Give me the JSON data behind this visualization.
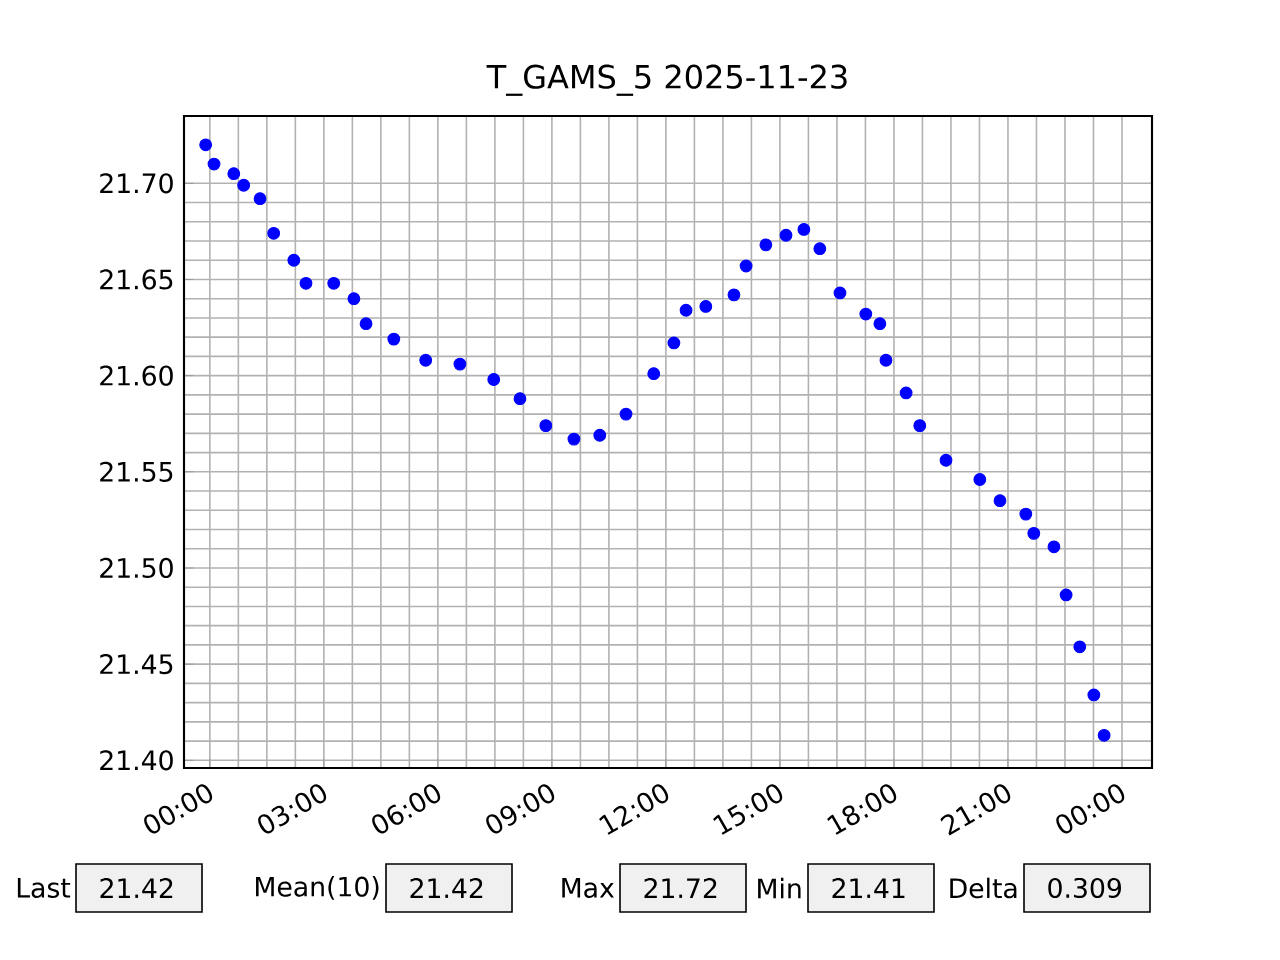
{
  "chart_data": {
    "type": "scatter",
    "title": "T_GAMS_5 2025-11-23",
    "color": "#0000ff",
    "marker": "circle",
    "grid": true,
    "x": [
      -0.11,
      0.11,
      0.63,
      0.89,
      1.32,
      1.68,
      2.21,
      2.53,
      3.26,
      3.79,
      4.11,
      4.84,
      5.68,
      6.58,
      7.47,
      8.16,
      8.84,
      9.58,
      10.26,
      10.95,
      11.68,
      12.21,
      12.53,
      13.05,
      13.79,
      14.11,
      14.63,
      15.16,
      15.63,
      16.05,
      16.58,
      17.26,
      17.63,
      17.79,
      18.32,
      18.68,
      19.37,
      20.26,
      20.79,
      21.47,
      21.68,
      22.21,
      22.53,
      22.89,
      23.26,
      23.53
    ],
    "values": [
      21.72,
      21.71,
      21.705,
      21.699,
      21.692,
      21.674,
      21.66,
      21.648,
      21.648,
      21.64,
      21.627,
      21.619,
      21.608,
      21.606,
      21.598,
      21.588,
      21.574,
      21.567,
      21.569,
      21.58,
      21.601,
      21.617,
      21.634,
      21.636,
      21.642,
      21.657,
      21.668,
      21.673,
      21.676,
      21.666,
      21.643,
      21.632,
      21.627,
      21.608,
      21.591,
      21.574,
      21.556,
      21.546,
      21.535,
      21.528,
      21.518,
      21.511,
      21.486,
      21.459,
      21.434,
      21.413
    ],
    "xlim": [
      -0.68,
      24.79
    ],
    "ylim": [
      21.396,
      21.735
    ],
    "xticks": [
      {
        "value": 0,
        "label": "00:00"
      },
      {
        "value": 3,
        "label": "03:00"
      },
      {
        "value": 6,
        "label": "06:00"
      },
      {
        "value": 9,
        "label": "09:00"
      },
      {
        "value": 12,
        "label": "12:00"
      },
      {
        "value": 15,
        "label": "15:00"
      },
      {
        "value": 18,
        "label": "18:00"
      },
      {
        "value": 21,
        "label": "21:00"
      },
      {
        "value": 24,
        "label": "00:00"
      }
    ],
    "yticks": [
      {
        "value": 21.4,
        "label": "21.40"
      },
      {
        "value": 21.45,
        "label": "21.45"
      },
      {
        "value": 21.5,
        "label": "21.50"
      },
      {
        "value": 21.55,
        "label": "21.55"
      },
      {
        "value": 21.6,
        "label": "21.60"
      },
      {
        "value": 21.65,
        "label": "21.65"
      },
      {
        "value": 21.7,
        "label": "21.70"
      }
    ],
    "annotations": [
      "Last",
      "21.42",
      "Mean(10)",
      "21.42",
      "Max",
      "21.72",
      "Min",
      "21.41",
      "Delta",
      "0.309"
    ]
  }
}
